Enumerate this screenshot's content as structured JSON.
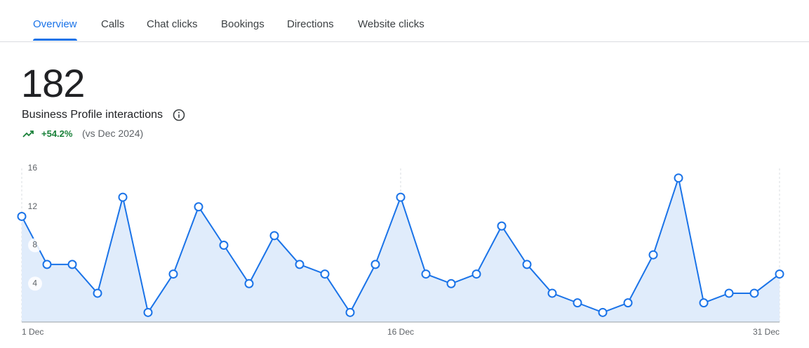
{
  "tabs": [
    "Overview",
    "Calls",
    "Chat clicks",
    "Bookings",
    "Directions",
    "Website clicks"
  ],
  "metric": {
    "value": 182,
    "label": "Business Profile interactions",
    "change": "+54.2%",
    "comparison": "(vs Dec 2024)"
  },
  "chart_data": {
    "type": "area",
    "color": "#1a73e8",
    "fill": "#e0ecfb",
    "categories": [
      "1 Dec",
      null,
      null,
      null,
      null,
      null,
      null,
      null,
      null,
      null,
      null,
      null,
      null,
      null,
      null,
      "16 Dec",
      null,
      null,
      null,
      null,
      null,
      null,
      null,
      null,
      null,
      null,
      null,
      null,
      null,
      null,
      "31 Dec"
    ],
    "values": [
      11,
      6,
      6,
      3,
      13,
      1,
      5,
      12,
      8,
      4,
      9,
      6,
      5,
      1,
      6,
      13,
      5,
      4,
      5,
      10,
      6,
      3,
      2,
      1,
      2,
      7,
      15,
      2,
      3,
      3,
      5
    ],
    "ylim": [
      0,
      16
    ],
    "yticks": [
      4,
      8,
      12,
      16
    ]
  }
}
